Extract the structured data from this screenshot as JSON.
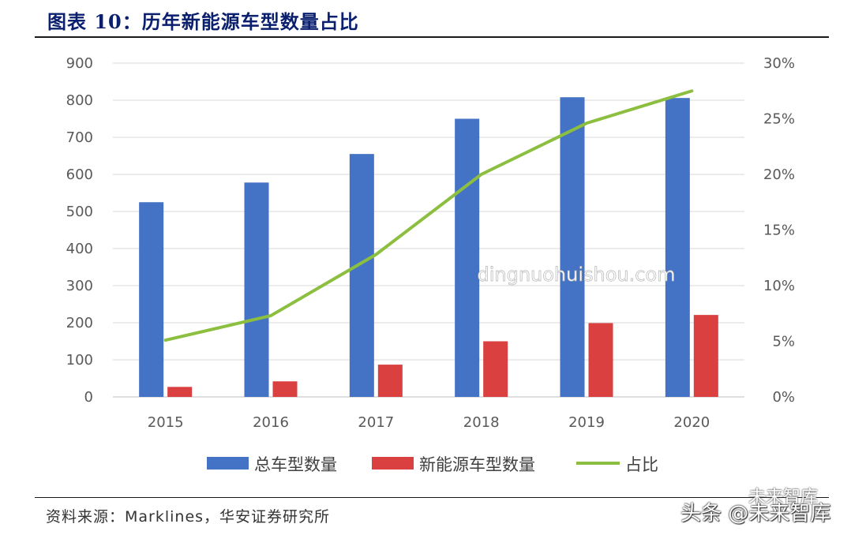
{
  "figure_title": "图表 10：历年新能源车型数量占比",
  "source": "资料来源：Marklines，华安证券研究所",
  "watermarks": {
    "center": "dingnuohuishou.com",
    "bottom": "头条 @未来智库",
    "top": "未来智库"
  },
  "colors": {
    "total": "#4472c4",
    "nev": "#d9403f",
    "share": "#8cbf3f",
    "grid": "#d9d9d9",
    "axis_text": "#595959"
  },
  "chart_data": {
    "type": "bar",
    "categories": [
      "2015",
      "2016",
      "2017",
      "2018",
      "2019",
      "2020"
    ],
    "series": [
      {
        "name": "总车型数量",
        "type": "bar",
        "axis": "left",
        "values": [
          525,
          578,
          655,
          750,
          808,
          806
        ]
      },
      {
        "name": "新能源车型数量",
        "type": "bar",
        "axis": "left",
        "values": [
          27,
          42,
          87,
          150,
          199,
          221
        ]
      },
      {
        "name": "占比",
        "type": "line",
        "axis": "right",
        "values": [
          0.051,
          0.073,
          0.128,
          0.2,
          0.246,
          0.275
        ]
      }
    ],
    "y_left": {
      "min": 0,
      "max": 900,
      "ticks": [
        "0",
        "100",
        "200",
        "300",
        "400",
        "500",
        "600",
        "700",
        "800",
        "900"
      ]
    },
    "y_right": {
      "min": 0,
      "max": 0.3,
      "ticks": [
        "0%",
        "5%",
        "10%",
        "15%",
        "20%",
        "25%",
        "30%"
      ]
    },
    "grid": true,
    "legend_position": "bottom"
  }
}
